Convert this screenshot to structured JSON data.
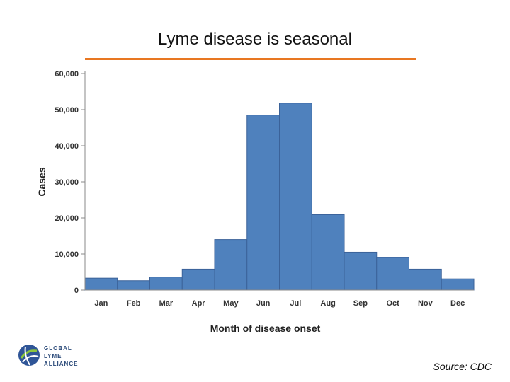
{
  "slide": {
    "title": "Lyme disease is seasonal",
    "source": "Source: CDC",
    "accent_color": "#e87722",
    "bar_color": "#4f81bd"
  },
  "logo": {
    "line1": "GLOBAL",
    "line2": "LYME",
    "line3": "ALLIANCE"
  },
  "chart_data": {
    "type": "bar",
    "title": "",
    "xlabel": "Month of disease onset",
    "ylabel": "Cases",
    "categories": [
      "Jan",
      "Feb",
      "Mar",
      "Apr",
      "May",
      "Jun",
      "Jul",
      "Aug",
      "Sep",
      "Oct",
      "Nov",
      "Dec"
    ],
    "values": [
      3300,
      2600,
      3600,
      5800,
      14000,
      48500,
      51800,
      20900,
      10500,
      9000,
      5800,
      3100
    ],
    "ylim": [
      0,
      60000
    ],
    "yticks": [
      0,
      10000,
      20000,
      30000,
      40000,
      50000,
      60000
    ],
    "ytick_labels": [
      "0",
      "10,000",
      "20,000",
      "30,000",
      "40,000",
      "50,000",
      "60,000"
    ],
    "grid": false,
    "legend": "none"
  }
}
